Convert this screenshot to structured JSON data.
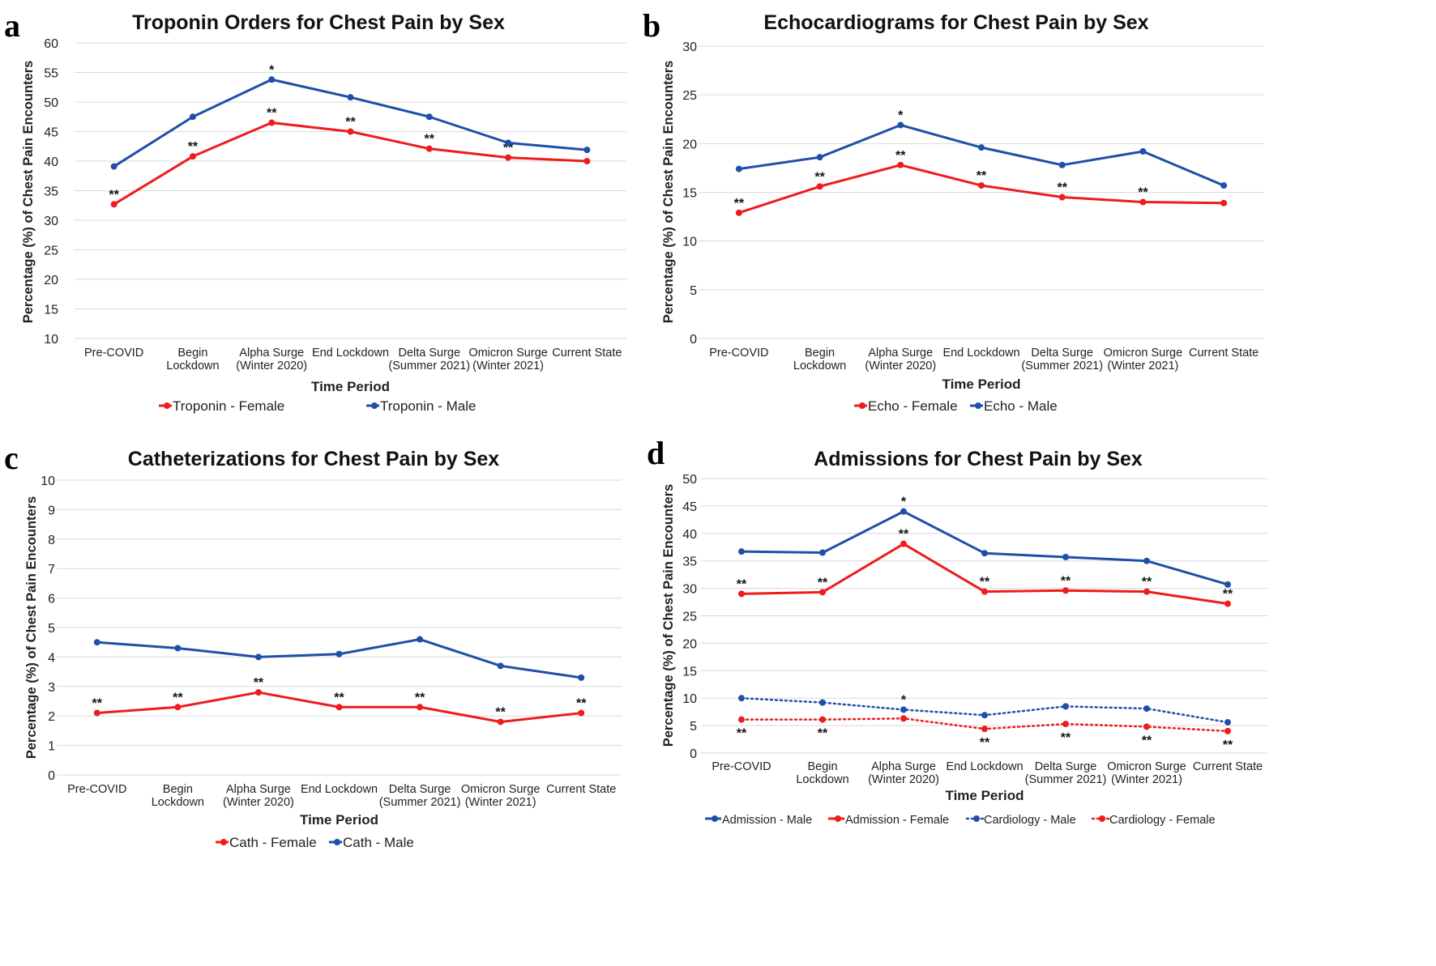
{
  "figure": {
    "colors": {
      "female": "#ee1c1c",
      "male": "#1f4fa8",
      "grid": "#d9d9d9",
      "text": "#222222"
    }
  },
  "chart_data": [
    {
      "panel_letter": "a",
      "type": "line",
      "title": "Troponin Orders for Chest Pain by Sex",
      "xlabel": "Time Period",
      "ylabel": "Percentage (%) of Chest Pain Encounters",
      "categories": [
        [
          "Pre-COVID"
        ],
        [
          "Begin",
          "Lockdown"
        ],
        [
          "Alpha Surge",
          "(Winter 2020)"
        ],
        [
          "End Lockdown"
        ],
        [
          "Delta Surge",
          "(Summer 2021)"
        ],
        [
          "Omicron Surge",
          "(Winter 2021)"
        ],
        [
          "Current State"
        ]
      ],
      "ylim": [
        10,
        60
      ],
      "ytick_step": 5,
      "grid": true,
      "legend_position": "bottom",
      "series": [
        {
          "name": "Troponin - Female",
          "color": "#ee1c1c",
          "dash": false,
          "values": [
            32.7,
            40.8,
            46.5,
            45.0,
            42.1,
            40.6,
            40.0
          ],
          "labels": [
            "**",
            "**",
            "**",
            "**",
            "**",
            "**",
            ""
          ]
        },
        {
          "name": "Troponin - Male",
          "color": "#1f4fa8",
          "dash": false,
          "values": [
            39.1,
            47.5,
            53.8,
            50.8,
            47.5,
            43.1,
            41.9
          ],
          "labels": [
            "",
            "",
            "*",
            "",
            "",
            "",
            ""
          ]
        }
      ]
    },
    {
      "panel_letter": "b",
      "type": "line",
      "title": "Echocardiograms for Chest Pain by Sex",
      "xlabel": "Time Period",
      "ylabel": "Percentage (%) of Chest Pain Encounters",
      "categories": [
        [
          "Pre-COVID"
        ],
        [
          "Begin",
          "Lockdown"
        ],
        [
          "Alpha Surge",
          "(Winter 2020)"
        ],
        [
          "End Lockdown"
        ],
        [
          "Delta Surge",
          "(Summer 2021)"
        ],
        [
          "Omicron Surge",
          "(Winter 2021)"
        ],
        [
          "Current State"
        ]
      ],
      "ylim": [
        0,
        30
      ],
      "ytick_step": 5,
      "grid": true,
      "legend_position": "bottom",
      "series": [
        {
          "name": "Echo - Female",
          "color": "#ee1c1c",
          "dash": false,
          "values": [
            12.9,
            15.6,
            17.8,
            15.7,
            14.5,
            14.0,
            13.9
          ],
          "labels": [
            "**",
            "**",
            "**",
            "**",
            "**",
            "**",
            ""
          ]
        },
        {
          "name": "Echo - Male",
          "color": "#1f4fa8",
          "dash": false,
          "values": [
            17.4,
            18.6,
            21.9,
            19.6,
            17.8,
            19.2,
            15.7
          ],
          "labels": [
            "",
            "",
            "*",
            "",
            "",
            "",
            ""
          ]
        }
      ]
    },
    {
      "panel_letter": "c",
      "type": "line",
      "title": "Catheterizations for Chest Pain by Sex",
      "xlabel": "Time Period",
      "ylabel": "Percentage (%) of Chest Pain Encounters",
      "categories": [
        [
          "Pre-COVID"
        ],
        [
          "Begin",
          "Lockdown"
        ],
        [
          "Alpha Surge",
          "(Winter 2020)"
        ],
        [
          "End Lockdown"
        ],
        [
          "Delta Surge",
          "(Summer 2021)"
        ],
        [
          "Omicron Surge",
          "(Winter 2021)"
        ],
        [
          "Current State"
        ]
      ],
      "ylim": [
        0,
        10
      ],
      "ytick_step": 1,
      "grid": true,
      "legend_position": "bottom",
      "series": [
        {
          "name": "Cath - Female",
          "color": "#ee1c1c",
          "dash": false,
          "values": [
            2.1,
            2.3,
            2.8,
            2.3,
            2.3,
            1.8,
            2.1
          ],
          "labels": [
            "**",
            "**",
            "**",
            "**",
            "**",
            "**",
            "**"
          ]
        },
        {
          "name": "Cath - Male",
          "color": "#1f4fa8",
          "dash": false,
          "values": [
            4.5,
            4.3,
            4.0,
            4.1,
            4.6,
            3.7,
            3.3
          ],
          "labels": [
            "",
            "",
            "",
            "",
            "",
            "",
            ""
          ]
        }
      ]
    },
    {
      "panel_letter": "d",
      "type": "line",
      "title": "Admissions for Chest Pain by Sex",
      "xlabel": "Time Period",
      "ylabel": "Percentage (%) of Chest Pain Encounters",
      "categories": [
        [
          "Pre-COVID"
        ],
        [
          "Begin",
          "Lockdown"
        ],
        [
          "Alpha Surge",
          "(Winter 2020)"
        ],
        [
          "End Lockdown"
        ],
        [
          "Delta Surge",
          "(Summer 2021)"
        ],
        [
          "Omicron Surge",
          "(Winter 2021)"
        ],
        [
          "Current State"
        ]
      ],
      "ylim": [
        0,
        50
      ],
      "ytick_step": 5,
      "grid": true,
      "legend_position": "bottom",
      "series": [
        {
          "name": "Admission - Male",
          "color": "#1f4fa8",
          "dash": false,
          "values": [
            36.7,
            36.5,
            44.0,
            36.4,
            35.7,
            35.0,
            30.7
          ],
          "labels": [
            "",
            "",
            "*",
            "",
            "",
            "",
            ""
          ]
        },
        {
          "name": "Admission - Female",
          "color": "#ee1c1c",
          "dash": false,
          "values": [
            29.0,
            29.3,
            38.1,
            29.4,
            29.6,
            29.4,
            27.2
          ],
          "labels": [
            "**",
            "**",
            "**",
            "**",
            "**",
            "**",
            "**"
          ]
        },
        {
          "name": "Cardiology - Male",
          "color": "#1f4fa8",
          "dash": true,
          "values": [
            10.0,
            9.2,
            7.9,
            6.9,
            8.5,
            8.1,
            5.6
          ],
          "labels": [
            "",
            "",
            "*",
            "",
            "",
            "",
            ""
          ]
        },
        {
          "name": "Cardiology - Female",
          "color": "#ee1c1c",
          "dash": true,
          "values": [
            6.1,
            6.1,
            6.3,
            4.4,
            5.3,
            4.8,
            4.0
          ],
          "labels": [
            "**",
            "**",
            "",
            "**",
            "**",
            "**",
            "**"
          ]
        }
      ]
    }
  ]
}
